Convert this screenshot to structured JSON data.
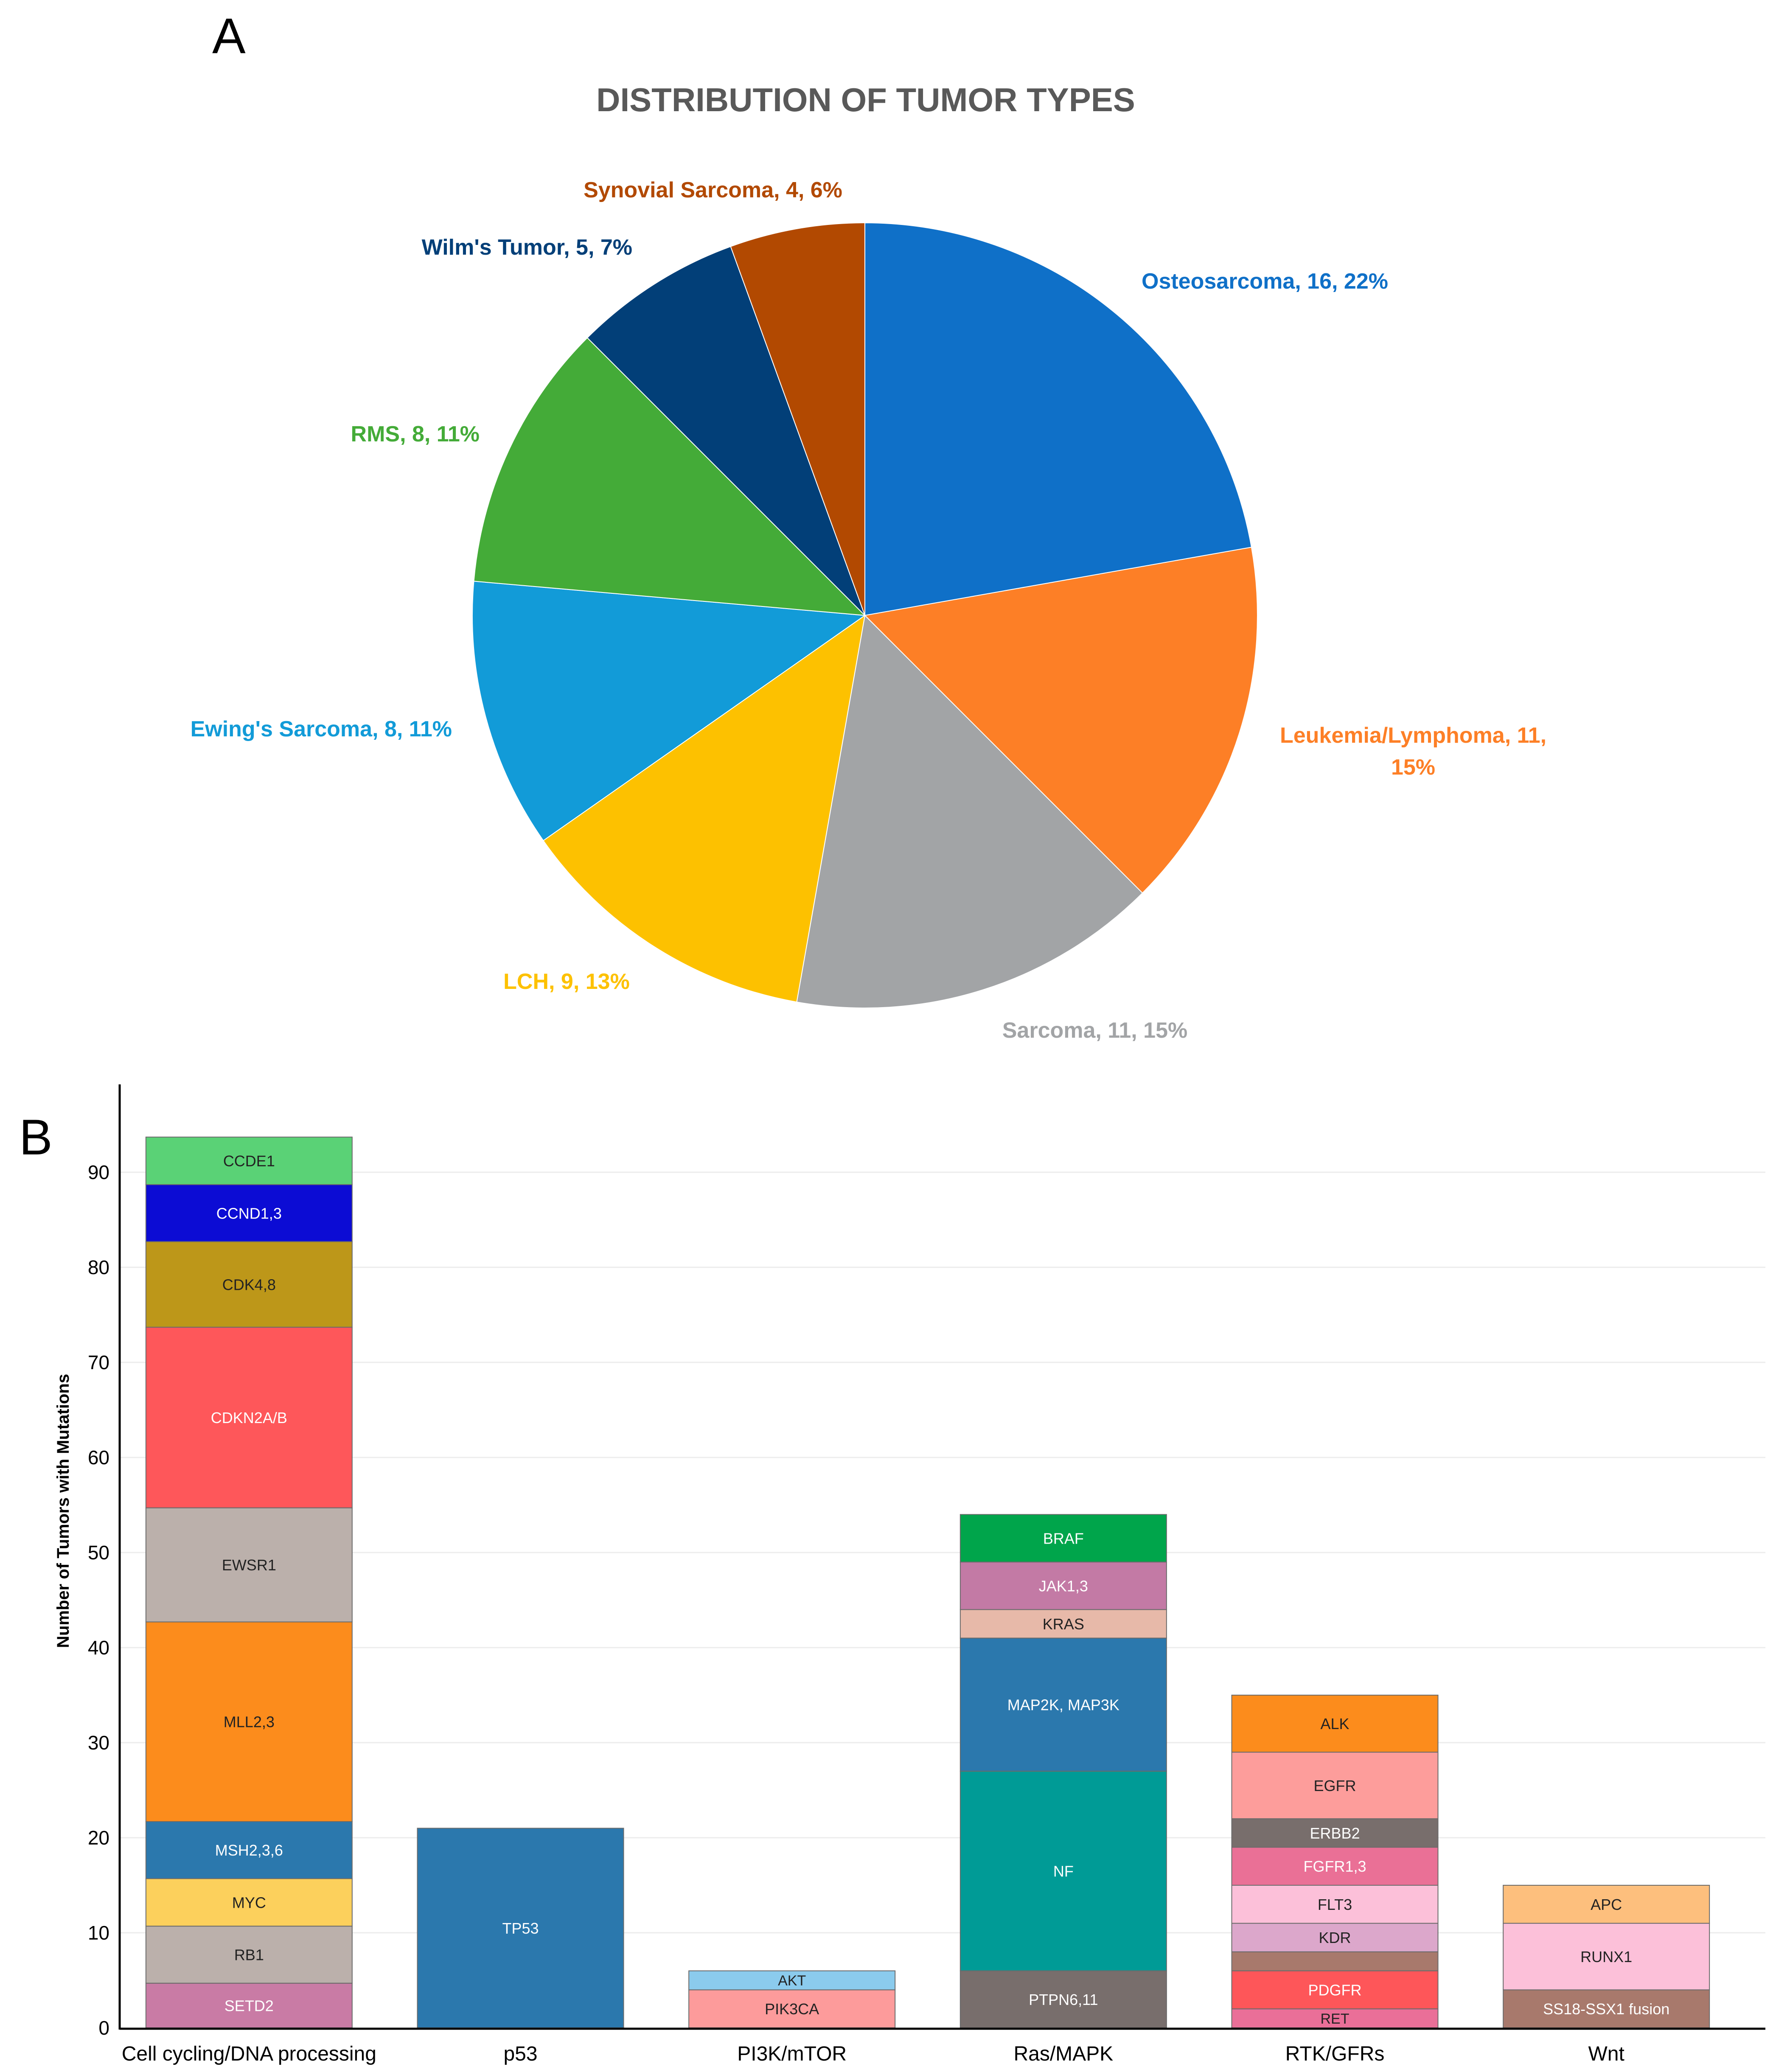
{
  "panel_labels": {
    "a": "A",
    "b": "B"
  },
  "chart_data": [
    {
      "type": "pie",
      "title": "DISTRIBUTION OF TUMOR TYPES",
      "slices": [
        {
          "label": "Osteosarcoma, 16, 22%",
          "name": "Osteosarcoma",
          "value": 16,
          "percent": 22,
          "color": "#0f70c8"
        },
        {
          "label": "Leukemia/Lymphoma, 11, 15%",
          "name": "Leukemia/Lymphoma",
          "value": 11,
          "percent": 15,
          "color": "#fd7f26"
        },
        {
          "label": "Sarcoma, 11, 15%",
          "name": "Sarcoma",
          "value": 11,
          "percent": 15,
          "color": "#a2a4a6"
        },
        {
          "label": "LCH, 9, 13%",
          "name": "LCH",
          "value": 9,
          "percent": 13,
          "color": "#fdc100"
        },
        {
          "label": "Ewing's Sarcoma, 8, 11%",
          "name": "Ewing's Sarcoma",
          "value": 8,
          "percent": 11,
          "color": "#129bd8"
        },
        {
          "label": "RMS, 8, 11%",
          "name": "RMS",
          "value": 8,
          "percent": 11,
          "color": "#44ab38"
        },
        {
          "label": "Wilm's Tumor, 5, 7%",
          "name": "Wilm's Tumor",
          "value": 5,
          "percent": 7,
          "color": "#023f78"
        },
        {
          "label": "Synovial Sarcoma, 4, 6%",
          "name": "Synovial Sarcoma",
          "value": 4,
          "percent": 6,
          "color": "#b24901"
        }
      ]
    },
    {
      "type": "bar",
      "stacked": true,
      "ylabel": "Number of Tumors with Mutations",
      "ylim": [
        0,
        98
      ],
      "yticks": [
        0,
        10,
        20,
        30,
        40,
        50,
        60,
        70,
        80,
        90
      ],
      "grid": true,
      "categories": [
        "Cell cycling/DNA processing",
        "p53",
        "PI3K/mTOR",
        "Ras/MAPK",
        "RTK/GFRs",
        "Wnt"
      ],
      "stacks": [
        {
          "category": "Cell cycling/DNA processing",
          "segments": [
            {
              "label": "SETD2",
              "value": 4.7,
              "color": "#c97ba5",
              "text_color": "#ffffff"
            },
            {
              "label": "RB1",
              "value": 6,
              "color": "#bbb0ab",
              "text_color": "#222222"
            },
            {
              "label": "MYC",
              "value": 5,
              "color": "#fcd05c",
              "text_color": "#222222"
            },
            {
              "label": "MSH2,3,6",
              "value": 6,
              "color": "#2b78ad",
              "text_color": "#ffffff"
            },
            {
              "label": "MLL2,3",
              "value": 21,
              "color": "#fc8c1c",
              "text_color": "#222222"
            },
            {
              "label": "EWSR1",
              "value": 12,
              "color": "#bbb0ab",
              "text_color": "#222222"
            },
            {
              "label": "CDKN2A/B",
              "value": 19,
              "color": "#fe575a",
              "text_color": "#ffffff"
            },
            {
              "label": "CDK4,8",
              "value": 9,
              "color": "#bd9719",
              "text_color": "#222222"
            },
            {
              "label": "CCND1,3",
              "value": 6,
              "color": "#0c0cd4",
              "text_color": "#ffffff"
            },
            {
              "label": "CCDE1",
              "value": 5,
              "color": "#5ad276",
              "text_color": "#222222"
            }
          ]
        },
        {
          "category": "p53",
          "segments": [
            {
              "label": "TP53",
              "value": 21,
              "color": "#2b78ad",
              "text_color": "#ffffff"
            }
          ]
        },
        {
          "category": "PI3K/mTOR",
          "segments": [
            {
              "label": "PIK3CA",
              "value": 4,
              "color": "#fd9b9b",
              "text_color": "#222222"
            },
            {
              "label": "AKT",
              "value": 2,
              "color": "#8bcbed",
              "text_color": "#222222"
            }
          ]
        },
        {
          "category": "Ras/MAPK",
          "segments": [
            {
              "label": "PTPN6,11",
              "value": 6,
              "color": "#786e6c",
              "text_color": "#ffffff"
            },
            {
              "label": "NF",
              "value": 21,
              "color": "#009b96",
              "text_color": "#ffffff"
            },
            {
              "label": "MAP2K, MAP3K",
              "value": 14,
              "color": "#2b78ad",
              "text_color": "#ffffff"
            },
            {
              "label": "KRAS",
              "value": 3,
              "color": "#e7b9a9",
              "text_color": "#222222"
            },
            {
              "label": "JAK1,3",
              "value": 5,
              "color": "#c37aa5",
              "text_color": "#ffffff"
            },
            {
              "label": "BRAF",
              "value": 5,
              "color": "#00a54b",
              "text_color": "#ffffff"
            }
          ]
        },
        {
          "category": "RTK/GFRs",
          "segments": [
            {
              "label": "RET",
              "value": 2,
              "color": "#ea6f98",
              "text_color": "#222222"
            },
            {
              "label": "PDGFR",
              "value": 4,
              "color": "#fe5659",
              "text_color": "#ffffff"
            },
            {
              "label": "",
              "value": 2,
              "color": "#a8796c",
              "text_color": "#ffffff"
            },
            {
              "label": "KDR",
              "value": 3,
              "color": "#dca7cb",
              "text_color": "#222222"
            },
            {
              "label": "FLT3",
              "value": 4,
              "color": "#fcc0d9",
              "text_color": "#222222"
            },
            {
              "label": "FGFR1,3",
              "value": 4,
              "color": "#ea7096",
              "text_color": "#ffffff"
            },
            {
              "label": "ERBB2",
              "value": 3,
              "color": "#786e6c",
              "text_color": "#ffffff"
            },
            {
              "label": "EGFR",
              "value": 7,
              "color": "#fd9d9b",
              "text_color": "#222222"
            },
            {
              "label": "ALK",
              "value": 6,
              "color": "#fc8c1c",
              "text_color": "#222222"
            }
          ]
        },
        {
          "category": "Wnt",
          "segments": [
            {
              "label": "SS18-SSX1 fusion",
              "value": 4,
              "color": "#a8796c",
              "text_color": "#ffffff"
            },
            {
              "label": "RUNX1",
              "value": 7,
              "color": "#fcc0d9",
              "text_color": "#222222"
            },
            {
              "label": "APC",
              "value": 4,
              "color": "#fdbf7d",
              "text_color": "#222222"
            }
          ]
        }
      ]
    }
  ]
}
